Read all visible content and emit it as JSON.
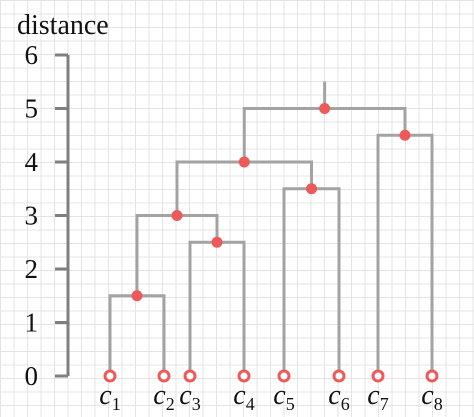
{
  "title": "distance",
  "colors": {
    "axis": "#7f7f7f",
    "link": "#a3a3a3",
    "merge_node": "#ee5a5a",
    "leaf_ring": "#ee5a5a",
    "label": "#111111",
    "grid": "#e4e4e4"
  },
  "y_axis": {
    "label": "distance",
    "range": [
      0,
      6
    ],
    "ticks": [
      0,
      1,
      2,
      3,
      4,
      5,
      6
    ]
  },
  "leaves": [
    {
      "base": "c",
      "sub": "1"
    },
    {
      "base": "c",
      "sub": "2"
    },
    {
      "base": "c",
      "sub": "3"
    },
    {
      "base": "c",
      "sub": "4"
    },
    {
      "base": "c",
      "sub": "5"
    },
    {
      "base": "c",
      "sub": "6"
    },
    {
      "base": "c",
      "sub": "7"
    },
    {
      "base": "c",
      "sub": "8"
    }
  ],
  "merges": [
    {
      "children": [
        "c1",
        "c2"
      ],
      "height": 1.5
    },
    {
      "children": [
        "c3",
        "c4"
      ],
      "height": 2.5
    },
    {
      "children": [
        "c1c2",
        "c3c4"
      ],
      "height": 3.0
    },
    {
      "children": [
        "c5",
        "c6"
      ],
      "height": 3.5
    },
    {
      "children": [
        "c1c2c3c4",
        "c5c6"
      ],
      "height": 4.0
    },
    {
      "children": [
        "c7",
        "c8"
      ],
      "height": 4.5
    },
    {
      "children": [
        "c1..c6",
        "c7c8"
      ],
      "height": 5.0
    }
  ]
}
